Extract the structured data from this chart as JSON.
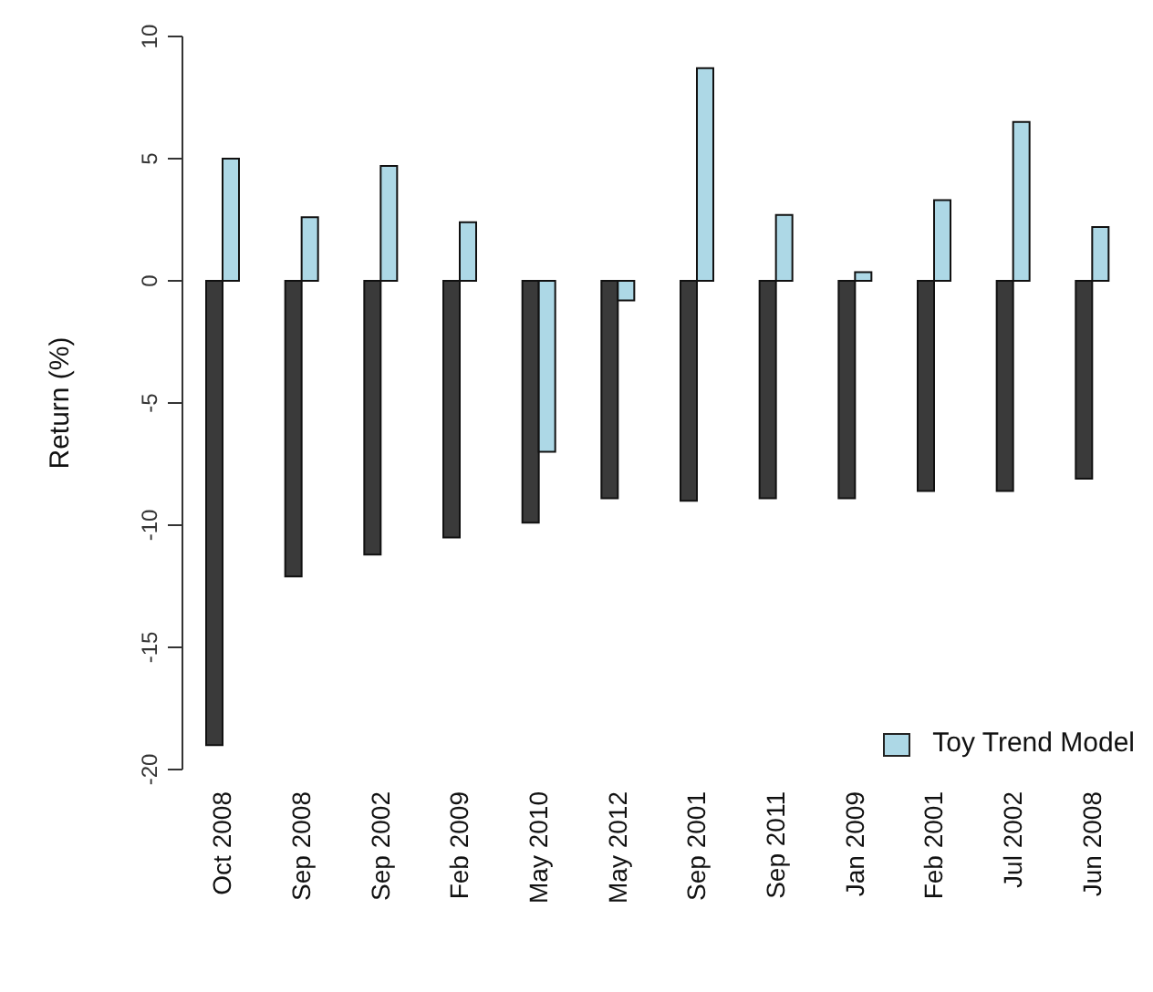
{
  "chart_data": {
    "type": "bar",
    "ylabel": "Return (%)",
    "categories": [
      "Oct 2008",
      "Sep 2008",
      "Sep 2002",
      "Feb 2009",
      "May 2010",
      "May 2012",
      "Sep 2001",
      "Sep 2011",
      "Jan 2009",
      "Feb 2001",
      "Jul 2002",
      "Jun 2008"
    ],
    "series": [
      {
        "color": "#3a3a3a",
        "values": [
          -19.0,
          -12.1,
          -11.2,
          -10.5,
          -9.9,
          -8.9,
          -9.0,
          -8.9,
          -8.9,
          -8.6,
          -8.6,
          -8.1
        ]
      },
      {
        "name": "Toy Trend Model",
        "color": "#add8e6",
        "values": [
          5.0,
          2.6,
          4.7,
          2.4,
          -7.0,
          -0.8,
          8.7,
          2.7,
          0.35,
          3.3,
          6.5,
          2.2
        ]
      }
    ],
    "ylim": [
      -20,
      10
    ],
    "yticks": [
      -20,
      -15,
      -10,
      -5,
      0,
      5,
      10
    ],
    "grid": false,
    "legend": "bottom right"
  }
}
